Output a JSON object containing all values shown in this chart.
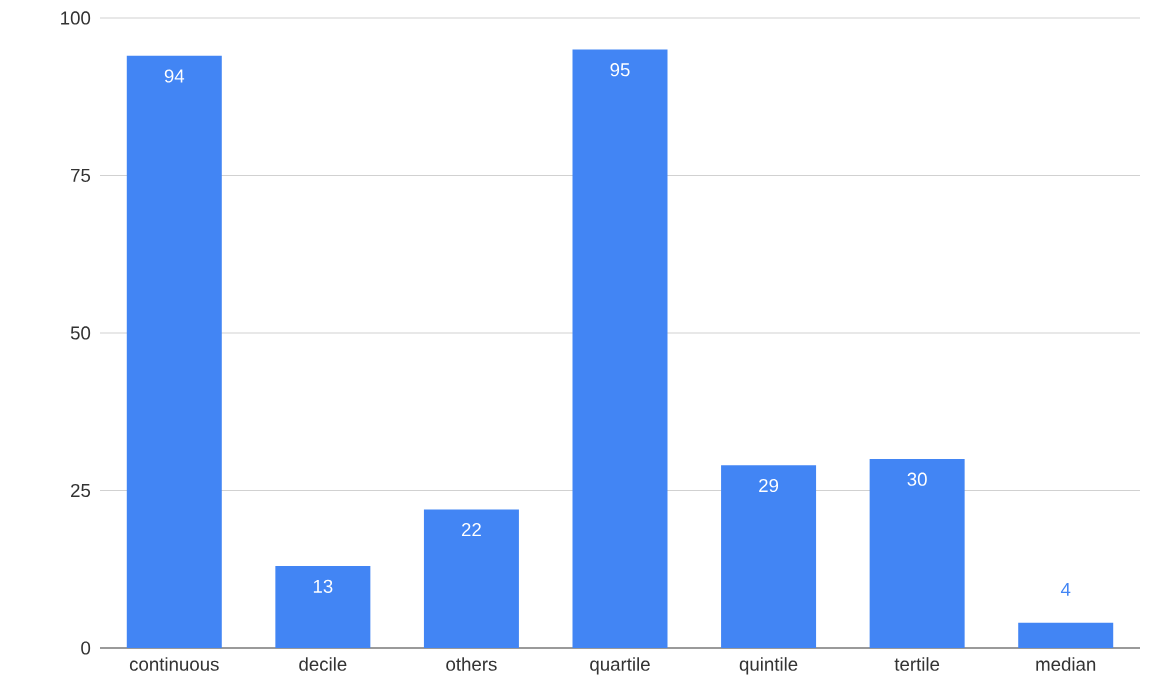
{
  "chart_data": {
    "type": "bar",
    "categories": [
      "continuous",
      "decile",
      "others",
      "quartile",
      "quintile",
      "tertile",
      "median"
    ],
    "values": [
      94,
      13,
      22,
      95,
      29,
      30,
      4
    ],
    "color": "#4285f4",
    "ylim": [
      0,
      100
    ],
    "yticks": [
      0,
      25,
      50,
      75,
      100
    ],
    "grid": "y",
    "data_labels": true
  }
}
